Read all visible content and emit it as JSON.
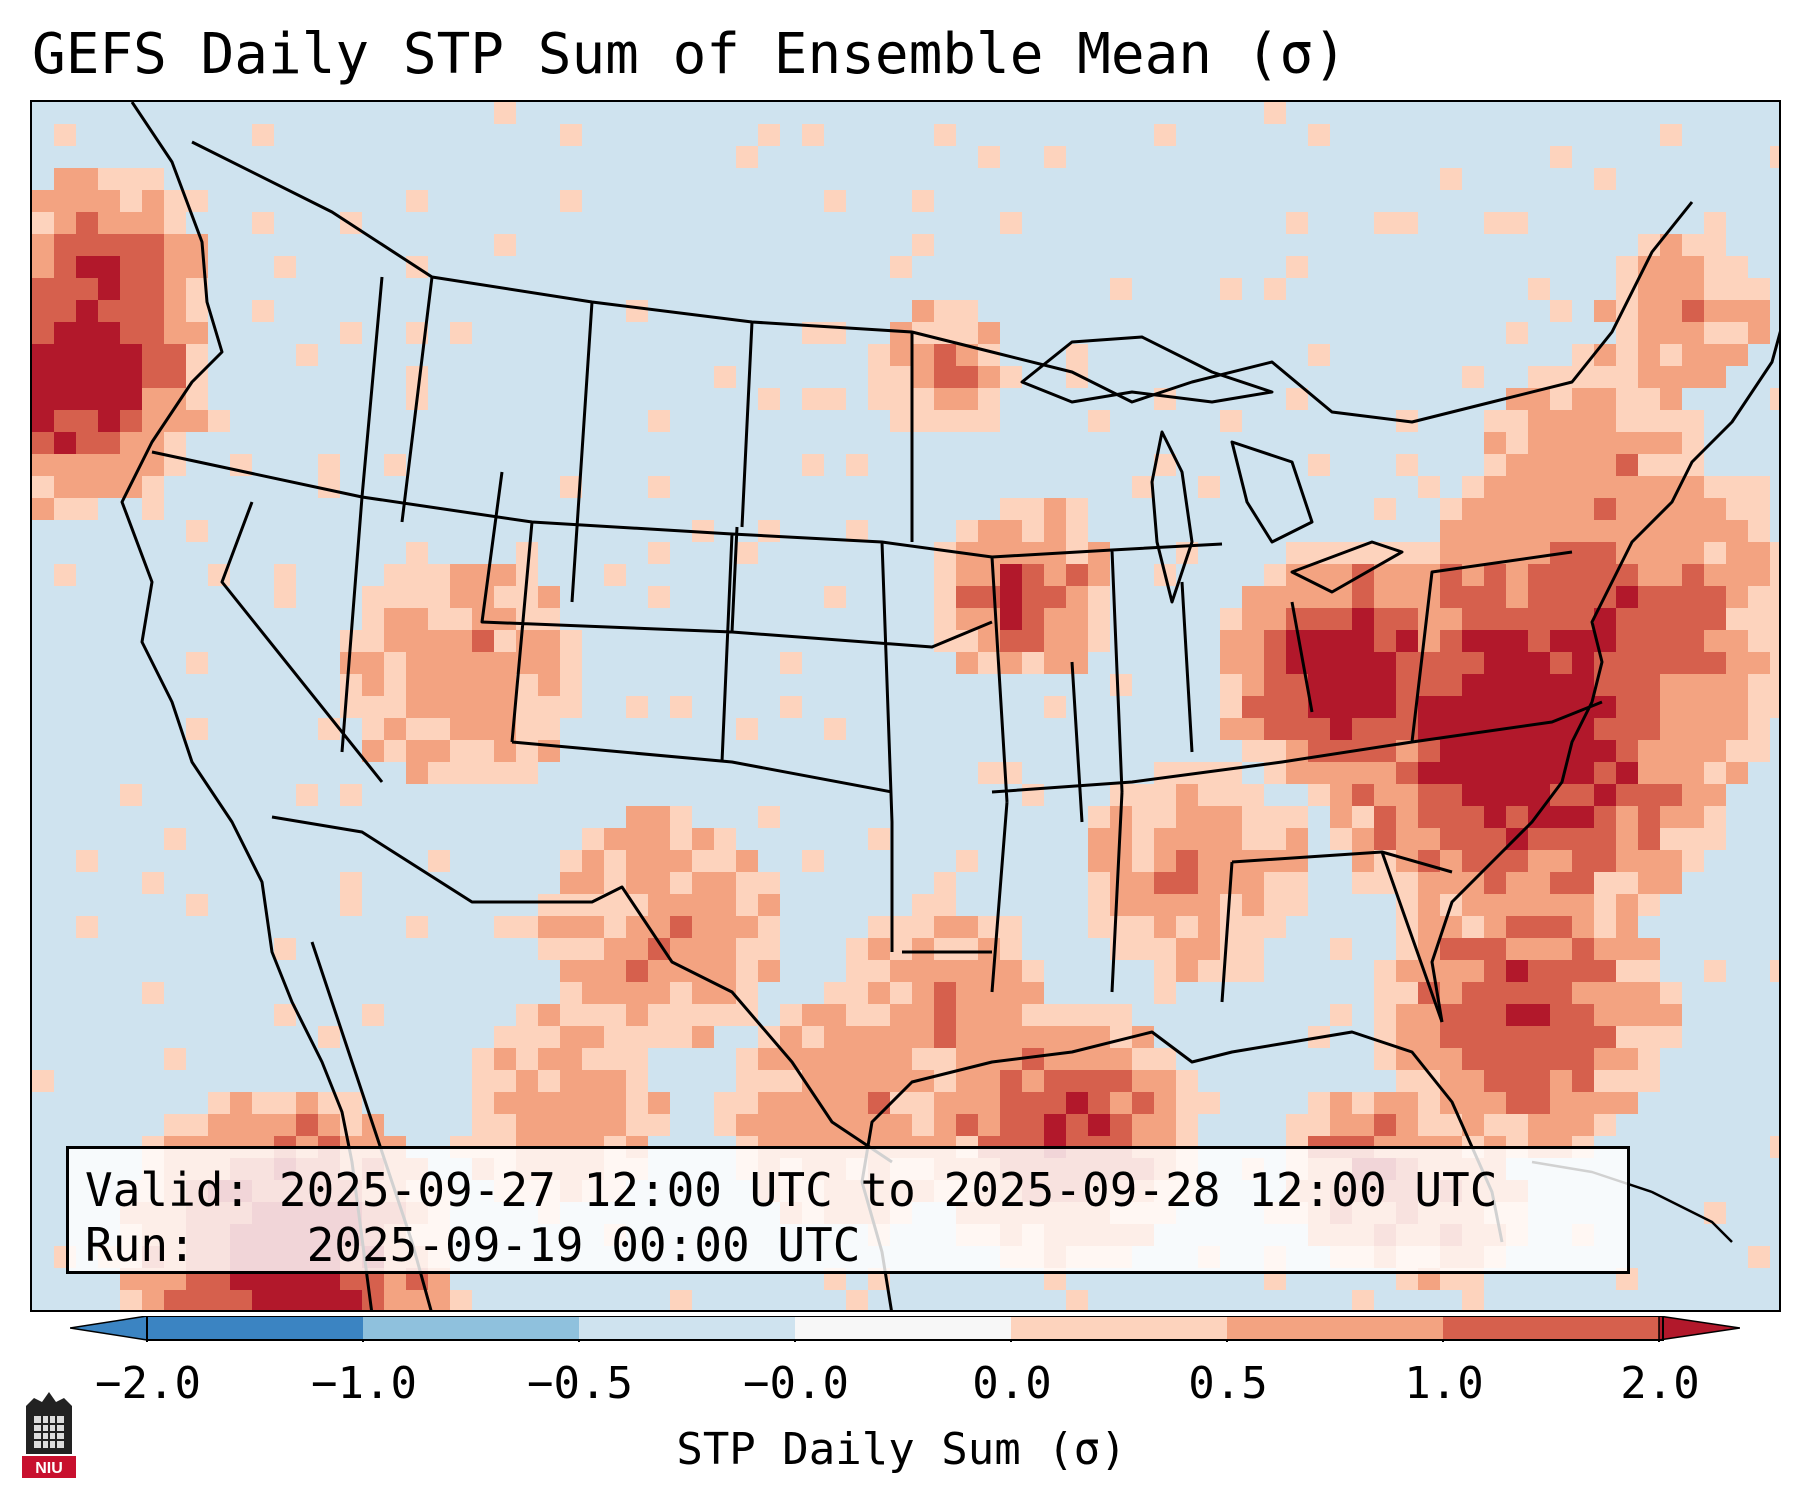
{
  "title": "GEFS Daily STP Sum of Ensemble Mean (σ)",
  "info": {
    "valid_label": "Valid:",
    "valid_value": "2025-09-27 12:00 UTC to 2025-09-28 12:00 UTC",
    "run_label": "Run:",
    "run_value": "2025-09-19 00:00 UTC"
  },
  "colorbar": {
    "label": "STP Daily Sum (σ)",
    "ticks": [
      "−2.0",
      "−1.0",
      "−0.5",
      "−0.0",
      "0.0",
      "0.5",
      "1.0",
      "2.0"
    ],
    "colors": [
      "#3b84c2",
      "#8fc1dd",
      "#cfe3ef",
      "#f7f7f7",
      "#fdd3bd",
      "#f3a381",
      "#d6604d",
      "#b2182b"
    ]
  },
  "logo_text": "NIU",
  "colors": {
    "background_low": "#cfe3ef",
    "light": "#fdd3bd",
    "medium": "#f3a381",
    "strong": "#d6604d",
    "extreme": "#b2182b"
  }
}
